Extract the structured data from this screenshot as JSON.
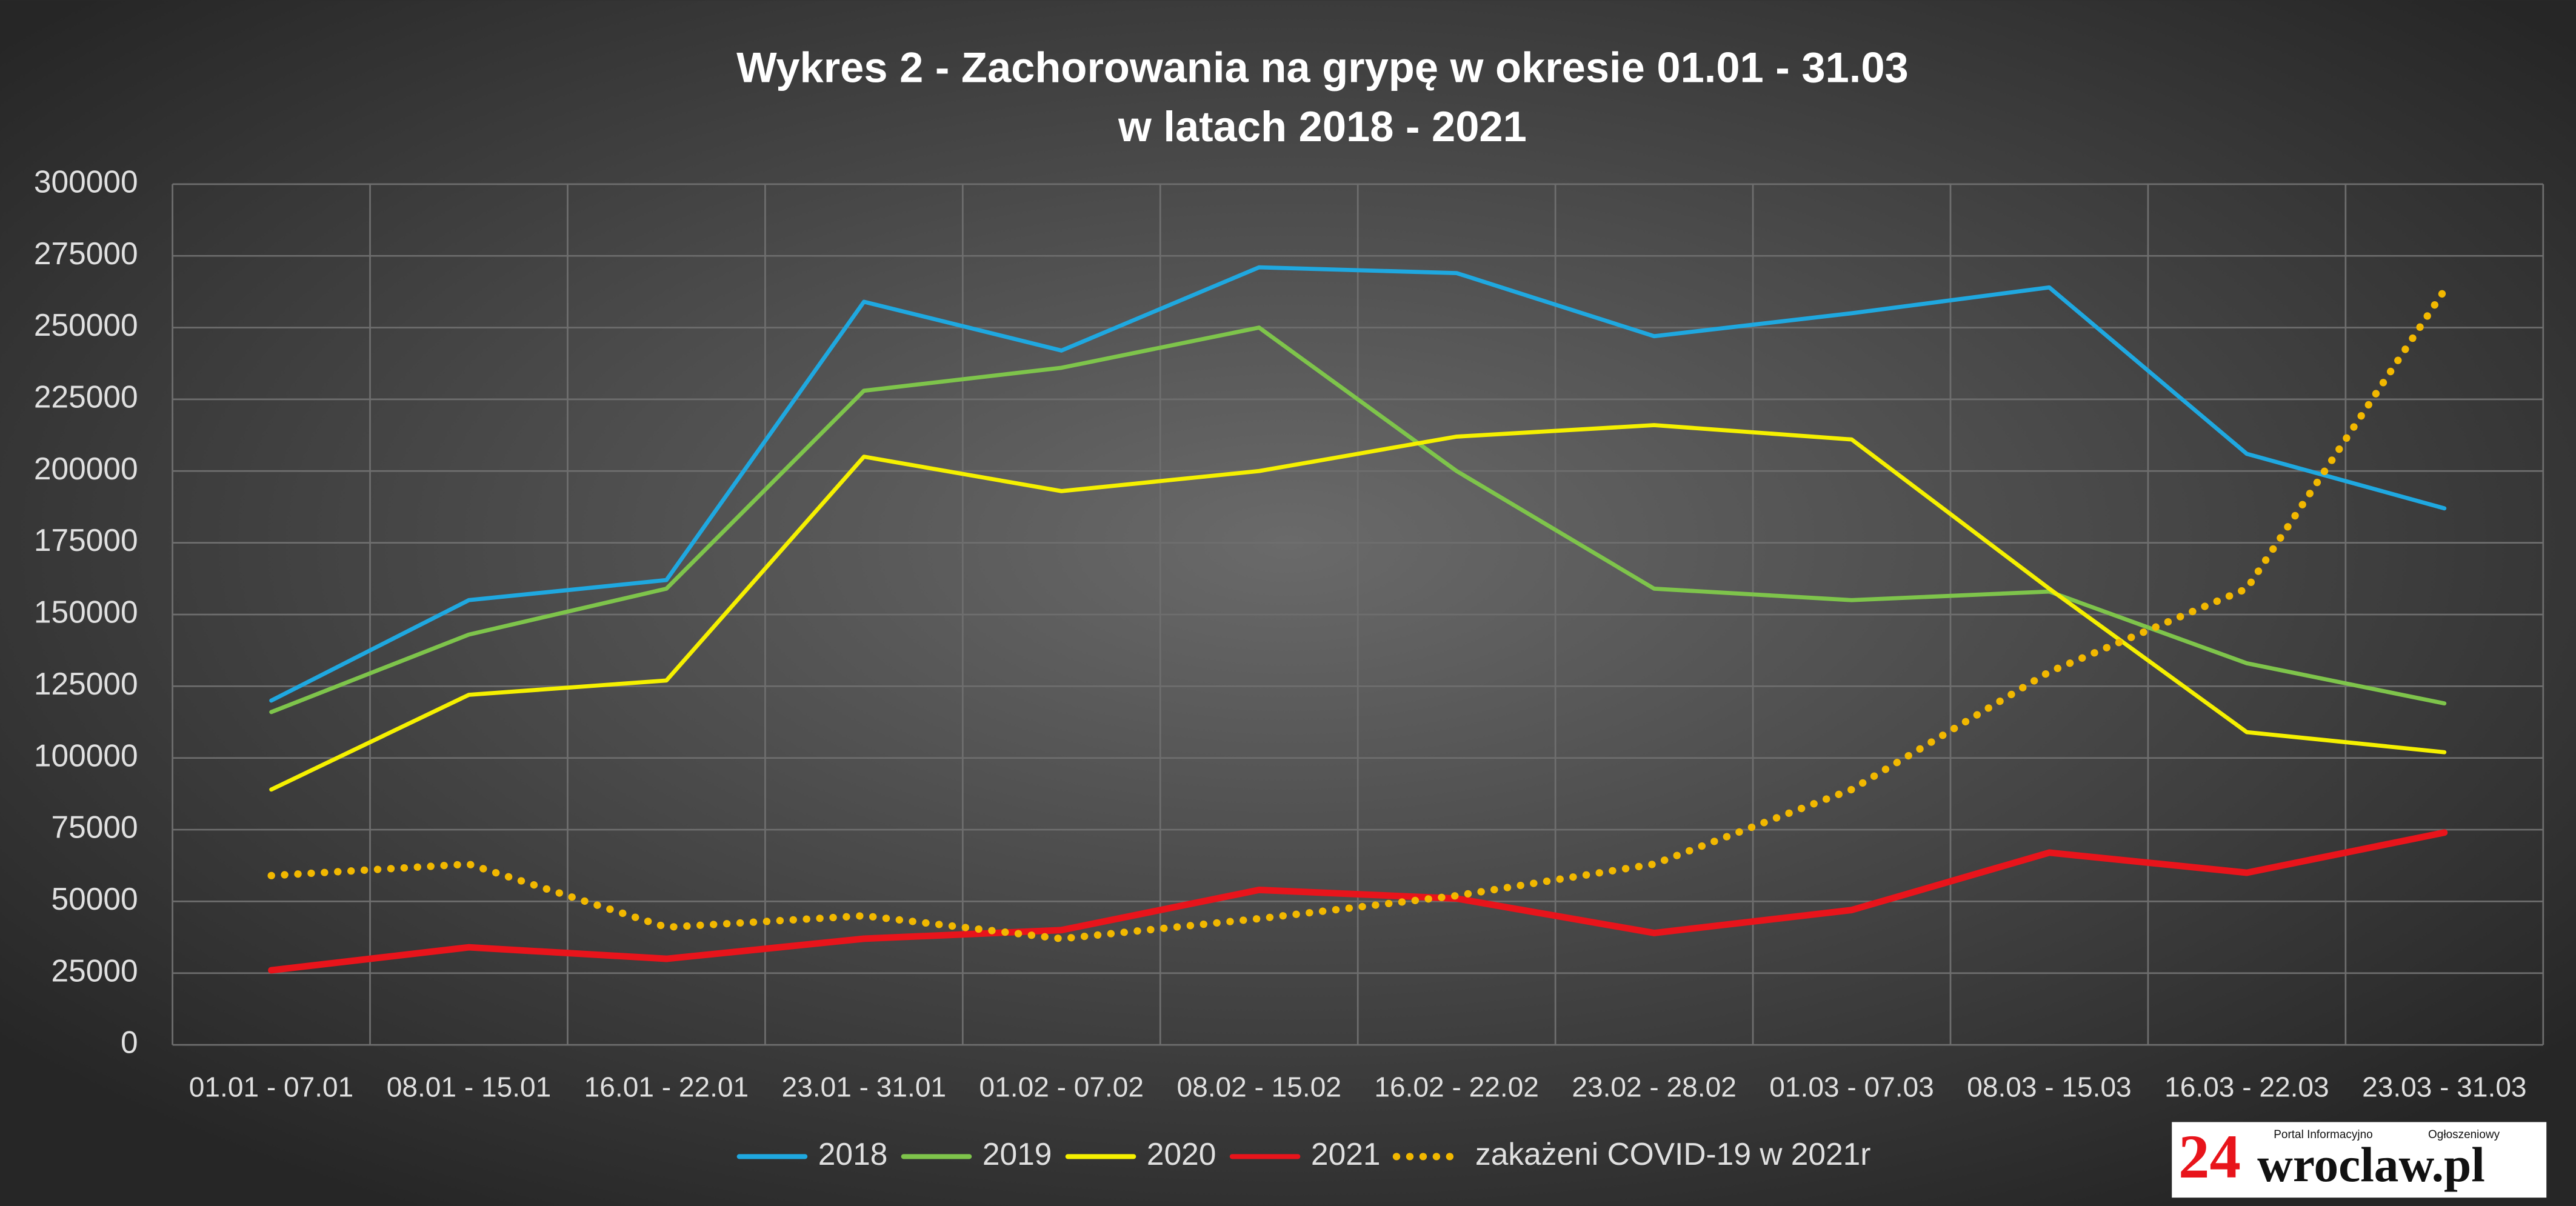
{
  "chart_data": {
    "type": "line",
    "title": [
      "Wykres 2 - Zachorowania na grypę w okresie 01.01 - 31.03",
      "w latach 2018 - 2021"
    ],
    "categories": [
      "01.01 - 07.01",
      "08.01 - 15.01",
      "16.01 - 22.01",
      "23.01 - 31.01",
      "01.02 - 07.02",
      "08.02 - 15.02",
      "16.02 - 22.02",
      "23.02 - 28.02",
      "01.03 - 07.03",
      "08.03 - 15.03",
      "16.03 - 22.03",
      "23.03 - 31.03"
    ],
    "series": [
      {
        "name": "2018",
        "color": "#1fa8e0",
        "values": [
          120000,
          155000,
          162000,
          259000,
          242000,
          271000,
          269000,
          247000,
          255000,
          264000,
          206000,
          187000
        ]
      },
      {
        "name": "2019",
        "color": "#7ec44b",
        "values": [
          116000,
          143000,
          159000,
          228000,
          236000,
          250000,
          200000,
          159000,
          155000,
          158000,
          133000,
          119000
        ]
      },
      {
        "name": "2020",
        "color": "#f5f000",
        "values": [
          89000,
          122000,
          127000,
          205000,
          193000,
          200000,
          212000,
          216000,
          211000,
          159000,
          109000,
          102000
        ]
      },
      {
        "name": "2021",
        "color": "#e8141b",
        "values": [
          26000,
          34000,
          30000,
          37000,
          40000,
          54000,
          51000,
          39000,
          47000,
          67000,
          60000,
          74000
        ]
      },
      {
        "name": "zakażeni COVID-19 w 2021r",
        "color": "#f2b800",
        "dotted": true,
        "values": [
          59000,
          63000,
          41000,
          45000,
          37000,
          44000,
          52000,
          63000,
          89000,
          130000,
          159000,
          263000
        ]
      }
    ],
    "ylim": [
      0,
      300000
    ],
    "yticks": [
      0,
      25000,
      50000,
      75000,
      100000,
      125000,
      150000,
      175000,
      200000,
      225000,
      250000,
      275000,
      300000
    ],
    "grid": true,
    "legend": "bottom",
    "logo": {
      "number": "24",
      "name": "wroclaw.pl",
      "tag1": "Portal Informacyjno",
      "tag2": "Ogłoszeniowy"
    }
  }
}
